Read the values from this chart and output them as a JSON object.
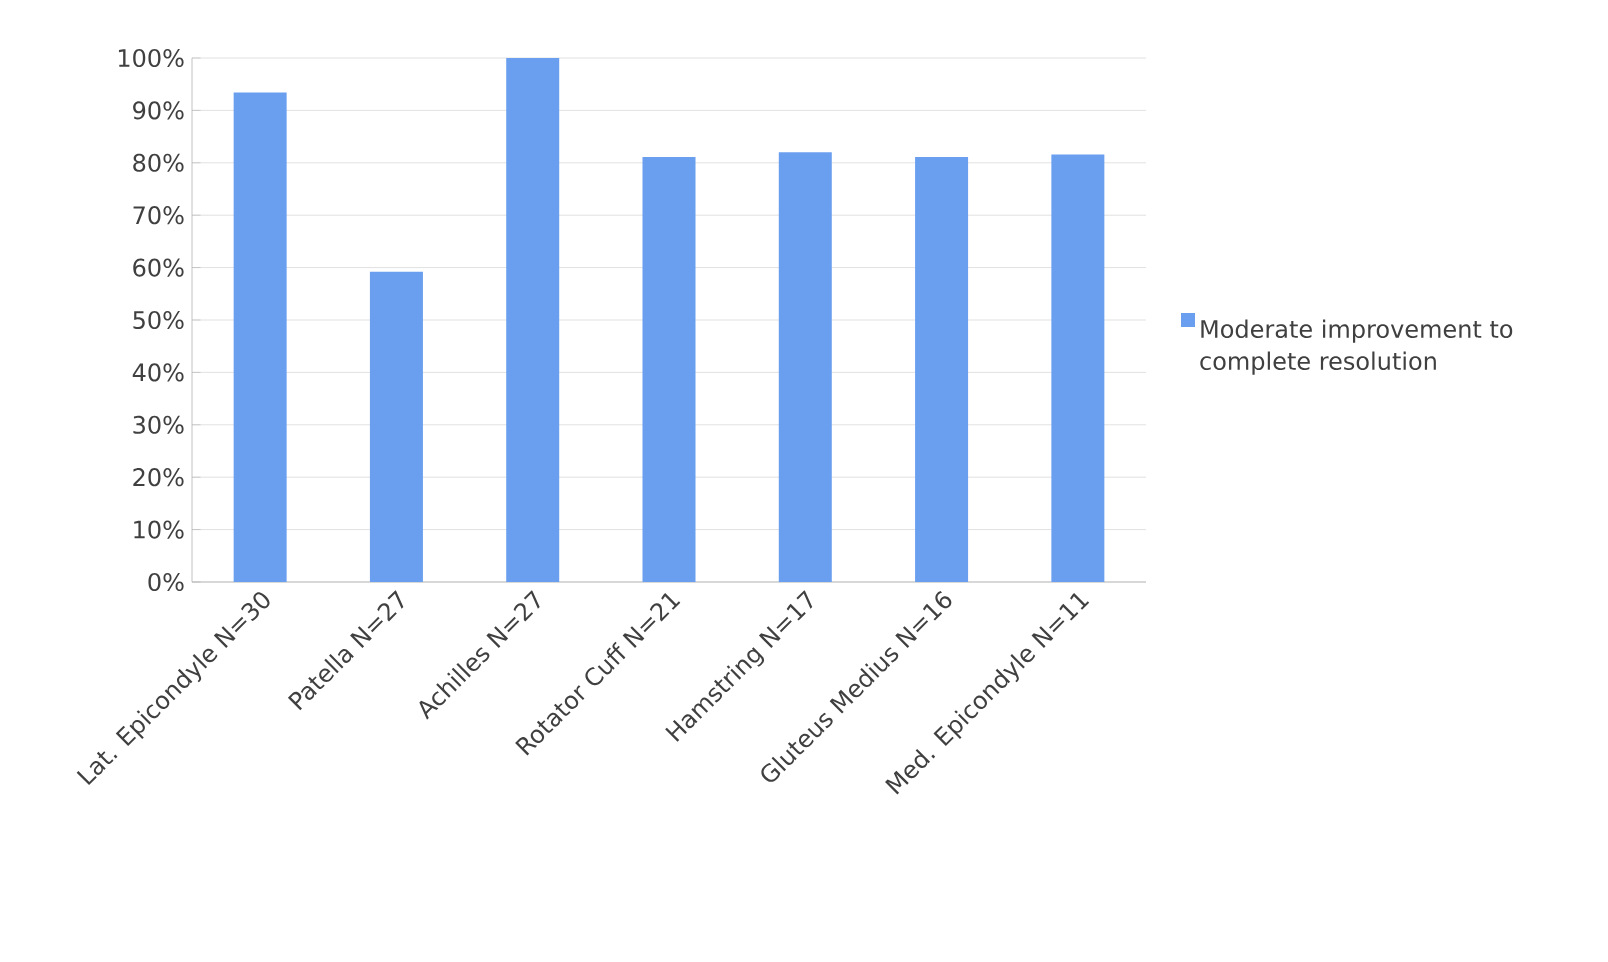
{
  "chart_data": {
    "type": "bar",
    "categories": [
      "Lat. Epicondyle N=30",
      "Patella N=27",
      "Achilles N=27",
      "Rotator Cuff N=21",
      "Hamstring N=17",
      "Gluteus Medius N=16",
      "Med. Epicondyle N=11"
    ],
    "series": [
      {
        "name": "Moderate improvement to complete resolution",
        "color": "#6a9ff0",
        "values": [
          93.4,
          59.2,
          100,
          81.1,
          82.0,
          81.1,
          81.6
        ]
      }
    ],
    "ylim": [
      0,
      100
    ],
    "yticks": [
      {
        "value": 0,
        "label": "0%"
      },
      {
        "value": 10,
        "label": "10%"
      },
      {
        "value": 20,
        "label": "20%"
      },
      {
        "value": 30,
        "label": "30%"
      },
      {
        "value": 40,
        "label": "40%"
      },
      {
        "value": 50,
        "label": "50%"
      },
      {
        "value": 60,
        "label": "60%"
      },
      {
        "value": 70,
        "label": "70%"
      },
      {
        "value": 80,
        "label": "80%"
      },
      {
        "value": 90,
        "label": "90%"
      },
      {
        "value": 100,
        "label": "100%"
      }
    ],
    "grid": "y",
    "legend": "right"
  }
}
